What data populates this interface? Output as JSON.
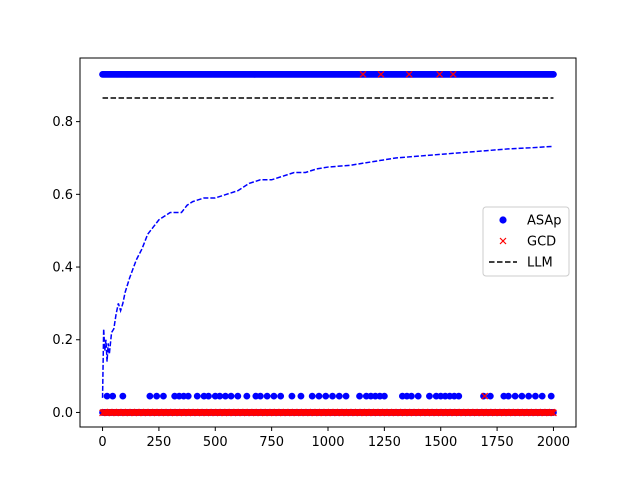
{
  "chart_data": {
    "type": "scatter",
    "title": "",
    "xlabel": "",
    "ylabel": "",
    "xlim": [
      -100,
      2100
    ],
    "ylim": [
      -0.04,
      0.975
    ],
    "xticks": [
      0,
      250,
      500,
      750,
      1000,
      1250,
      1500,
      1750,
      2000
    ],
    "xtick_labels": [
      "0",
      "250",
      "500",
      "750",
      "1000",
      "1250",
      "1500",
      "1750",
      "2000"
    ],
    "yticks": [
      0.0,
      0.2,
      0.4,
      0.6,
      0.8
    ],
    "ytick_labels": [
      "0.0",
      "0.2",
      "0.4",
      "0.6",
      "0.8"
    ],
    "grid": false,
    "legend_position": "center-right",
    "colors": {
      "asap": "#0000ff",
      "gcd": "#ff0000",
      "llm": "#000000"
    },
    "series": [
      {
        "name": "ASAp",
        "kind": "scatter",
        "marker": "circle",
        "levels": [
          {
            "y": 0.93,
            "x_range": [
              0,
              2000
            ],
            "dense": true
          },
          {
            "y": 0.0,
            "x_range": [
              0,
              2000
            ],
            "dense": true
          },
          {
            "y": 0.045,
            "x": [
              20,
              45,
              90,
              210,
              240,
              270,
              320,
              340,
              360,
              380,
              420,
              450,
              470,
              500,
              520,
              545,
              570,
              600,
              640,
              680,
              700,
              730,
              760,
              790,
              840,
              880,
              930,
              960,
              990,
              1020,
              1050,
              1080,
              1140,
              1170,
              1190,
              1210,
              1230,
              1250,
              1330,
              1350,
              1370,
              1400,
              1450,
              1480,
              1500,
              1520,
              1540,
              1560,
              1580,
              1690,
              1720,
              1780,
              1800,
              1830,
              1860,
              1890,
              1920,
              1950,
              1990
            ]
          }
        ]
      },
      {
        "name": "GCD",
        "kind": "scatter",
        "marker": "x",
        "points": [
          {
            "x": 1155,
            "y": 0.93
          },
          {
            "x": 1235,
            "y": 0.93
          },
          {
            "x": 1360,
            "y": 0.93
          },
          {
            "x": 1495,
            "y": 0.93
          },
          {
            "x": 1555,
            "y": 0.93
          },
          {
            "x": 1695,
            "y": 0.045
          }
        ],
        "dense_level": {
          "y": 0.0,
          "x_range": [
            0,
            2000
          ]
        }
      },
      {
        "name": "LLM",
        "kind": "line",
        "style": "dashed",
        "x": [
          0,
          2000
        ],
        "values": [
          0.865,
          0.865
        ]
      },
      {
        "kind": "line",
        "style": "dashed",
        "x": [
          0,
          5,
          10,
          15,
          20,
          25,
          30,
          40,
          50,
          60,
          70,
          80,
          90,
          100,
          120,
          150,
          175,
          200,
          225,
          250,
          275,
          300,
          325,
          350,
          375,
          400,
          450,
          500,
          550,
          600,
          650,
          700,
          750,
          800,
          850,
          900,
          950,
          1000,
          1100,
          1200,
          1300,
          1400,
          1500,
          1600,
          1700,
          1800,
          1900,
          2000
        ],
        "values": [
          0.04,
          0.23,
          0.17,
          0.2,
          0.14,
          0.19,
          0.16,
          0.22,
          0.23,
          0.27,
          0.3,
          0.28,
          0.3,
          0.33,
          0.37,
          0.42,
          0.45,
          0.49,
          0.51,
          0.53,
          0.54,
          0.55,
          0.55,
          0.55,
          0.57,
          0.58,
          0.59,
          0.59,
          0.6,
          0.61,
          0.63,
          0.64,
          0.64,
          0.65,
          0.66,
          0.66,
          0.67,
          0.675,
          0.68,
          0.69,
          0.7,
          0.705,
          0.71,
          0.715,
          0.72,
          0.725,
          0.728,
          0.732
        ]
      }
    ]
  }
}
